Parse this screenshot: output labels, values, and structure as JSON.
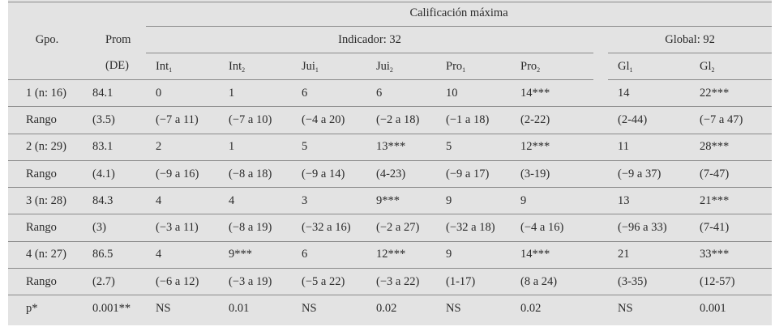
{
  "header": {
    "main_title": "Calificación máxima",
    "gpo": "Gpo.",
    "prom": "Prom",
    "de": "(DE)",
    "indicador": "Indicador: 32",
    "global": "Global: 92",
    "cols": [
      {
        "base": "Int",
        "sub": "1"
      },
      {
        "base": "Int",
        "sub": "2"
      },
      {
        "base": "Jui",
        "sub": "1"
      },
      {
        "base": "Jui",
        "sub": "2"
      },
      {
        "base": "Pro",
        "sub": "1"
      },
      {
        "base": "Pro",
        "sub": "2"
      },
      {
        "base": "Gl",
        "sub": "1"
      },
      {
        "base": "Gl",
        "sub": "2"
      }
    ]
  },
  "rows": [
    {
      "label": "1 (n: 16)",
      "prom": "84.1",
      "v": [
        "0",
        "1",
        "6",
        "6",
        "10",
        "14***",
        "14",
        "22***"
      ]
    },
    {
      "label": "Rango",
      "prom": "(3.5)",
      "v": [
        "(−7 a 11)",
        "(−7 a 10)",
        "(−4 a 20)",
        "(−2 a 18)",
        "(−1 a 18)",
        "(2-22)",
        "(2-44)",
        "(−7 a 47)"
      ]
    },
    {
      "label": "2 (n: 29)",
      "prom": "83.1",
      "v": [
        "2",
        "1",
        "5",
        "13***",
        "5",
        "12***",
        "11",
        "28***"
      ]
    },
    {
      "label": "Rango",
      "prom": "(4.1)",
      "v": [
        "(−9 a 16)",
        "(−8 a 18)",
        "(−9 a 14)",
        "(4-23)",
        "(−9 a 17)",
        "(3-19)",
        "(−9 a 37)",
        "(7-47)"
      ]
    },
    {
      "label": "3 (n: 28)",
      "prom": "84.3",
      "v": [
        "4",
        "4",
        "3",
        "9***",
        "9",
        "9",
        "13",
        "21***"
      ]
    },
    {
      "label": "Rango",
      "prom": "(3)",
      "v": [
        "(−3 a 11)",
        "(−8 a 19)",
        "(−32 a 16)",
        "(−2 a 27)",
        "(−32 a 18)",
        "(−4 a 16)",
        "(−96 a 33)",
        "(7-41)"
      ]
    },
    {
      "label": "4 (n: 27)",
      "prom": "86.5",
      "v": [
        "4",
        "9***",
        "6",
        "12***",
        "9",
        "14***",
        "21",
        "33***"
      ]
    },
    {
      "label": "Rango",
      "prom": "(2.7)",
      "v": [
        "(−6 a 12)",
        "(−3 a 19)",
        "(−5 a 22)",
        "(−3 a 22)",
        "(1-17)",
        "(8 a 24)",
        "(3-35)",
        "(12-57)"
      ]
    },
    {
      "label": "p*",
      "prom": "0.001**",
      "v": [
        "NS",
        "0.01",
        "NS",
        "0.02",
        "NS",
        "0.02",
        "NS",
        "0.001"
      ]
    }
  ]
}
